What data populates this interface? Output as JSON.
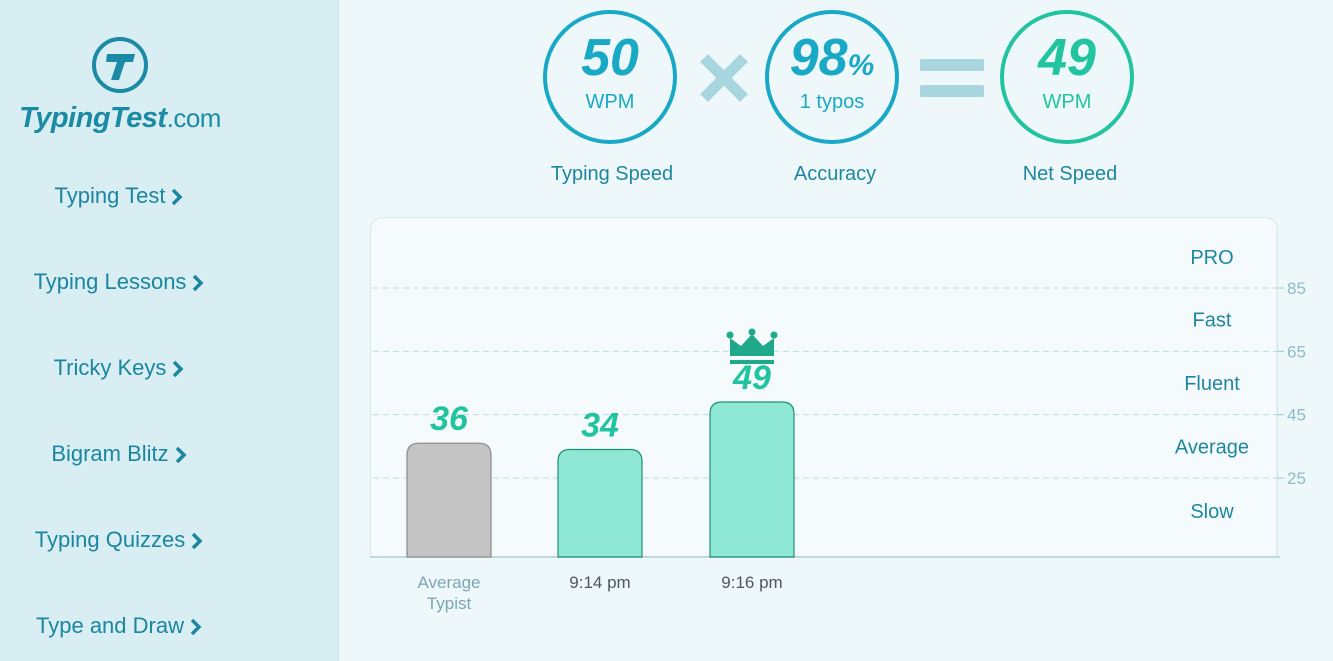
{
  "logo": {
    "name": "TypingTest",
    "suffix": ".com"
  },
  "nav": [
    {
      "label": "Typing Test"
    },
    {
      "label": "Typing Lessons"
    },
    {
      "label": "Tricky Keys"
    },
    {
      "label": "Bigram Blitz"
    },
    {
      "label": "Typing Quizzes"
    },
    {
      "label": "Type and Draw"
    }
  ],
  "stats": {
    "speed": {
      "value": "50",
      "unit": "WPM",
      "caption": "Typing Speed"
    },
    "accuracy": {
      "value": "98",
      "percent": "%",
      "sub": "1 typos",
      "caption": "Accuracy"
    },
    "net": {
      "value": "49",
      "unit": "WPM",
      "caption": "Net Speed"
    }
  },
  "colors": {
    "accent": "#19a9c6",
    "green": "#22c4a0",
    "barGreen": "#8ee8d4",
    "barGray": "#c4c4c4"
  },
  "chart_data": {
    "type": "bar",
    "categories": [
      "Average\nTypist",
      "9:14 pm",
      "9:16 pm"
    ],
    "values": [
      36,
      34,
      49
    ],
    "bar_colors": [
      "#c4c4c4",
      "#8ee8d4",
      "#8ee8d4"
    ],
    "highlight": {
      "index": 2,
      "icon": "crown-icon"
    },
    "y_ticks": [
      25,
      45,
      65,
      85
    ],
    "ylim": [
      0,
      100
    ],
    "bands": [
      "Slow",
      "Average",
      "Fluent",
      "Fast",
      "PRO"
    ],
    "grid": "dashed horizontal"
  }
}
